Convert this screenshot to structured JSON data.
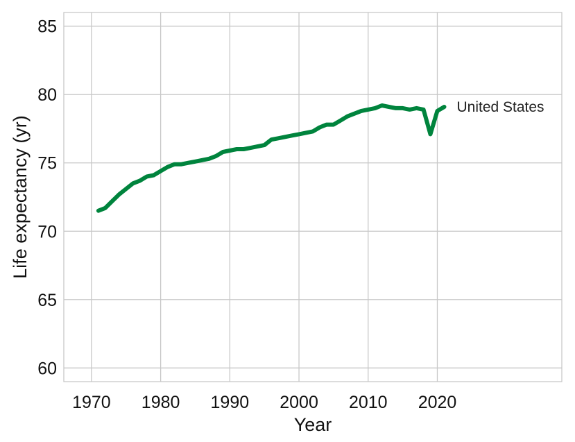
{
  "chart_data": {
    "type": "line",
    "title": "",
    "xlabel": "Year",
    "ylabel": "Life expectancy (yr)",
    "xlim": [
      1966,
      2038
    ],
    "ylim": [
      59,
      86
    ],
    "x_ticks": [
      1970,
      1980,
      1990,
      2000,
      2010,
      2020
    ],
    "y_ticks": [
      60,
      65,
      70,
      75,
      80,
      85
    ],
    "grid": true,
    "legend": "none",
    "series": [
      {
        "name": "United States",
        "color": "#00843d",
        "x": [
          1971,
          1972,
          1973,
          1974,
          1975,
          1976,
          1977,
          1978,
          1979,
          1980,
          1981,
          1982,
          1983,
          1984,
          1985,
          1986,
          1987,
          1988,
          1989,
          1990,
          1991,
          1992,
          1993,
          1994,
          1995,
          1996,
          1997,
          1998,
          1999,
          2000,
          2001,
          2002,
          2003,
          2004,
          2005,
          2006,
          2007,
          2008,
          2009,
          2010,
          2011,
          2012,
          2013,
          2014,
          2015,
          2016,
          2017,
          2018,
          2019,
          2020,
          2021
        ],
        "values": [
          71.5,
          71.7,
          72.2,
          72.7,
          73.1,
          73.5,
          73.7,
          74.0,
          74.1,
          74.4,
          74.7,
          74.9,
          74.9,
          75.0,
          75.1,
          75.2,
          75.3,
          75.5,
          75.8,
          75.9,
          76.0,
          76.0,
          76.1,
          76.2,
          76.3,
          76.7,
          76.8,
          76.9,
          77.0,
          77.1,
          77.2,
          77.3,
          77.6,
          77.8,
          77.8,
          78.1,
          78.4,
          78.6,
          78.8,
          78.9,
          79.0,
          79.2,
          79.1,
          79.0,
          79.0,
          78.9,
          79.0,
          78.9,
          77.1,
          78.8,
          79.1
        ]
      }
    ]
  }
}
